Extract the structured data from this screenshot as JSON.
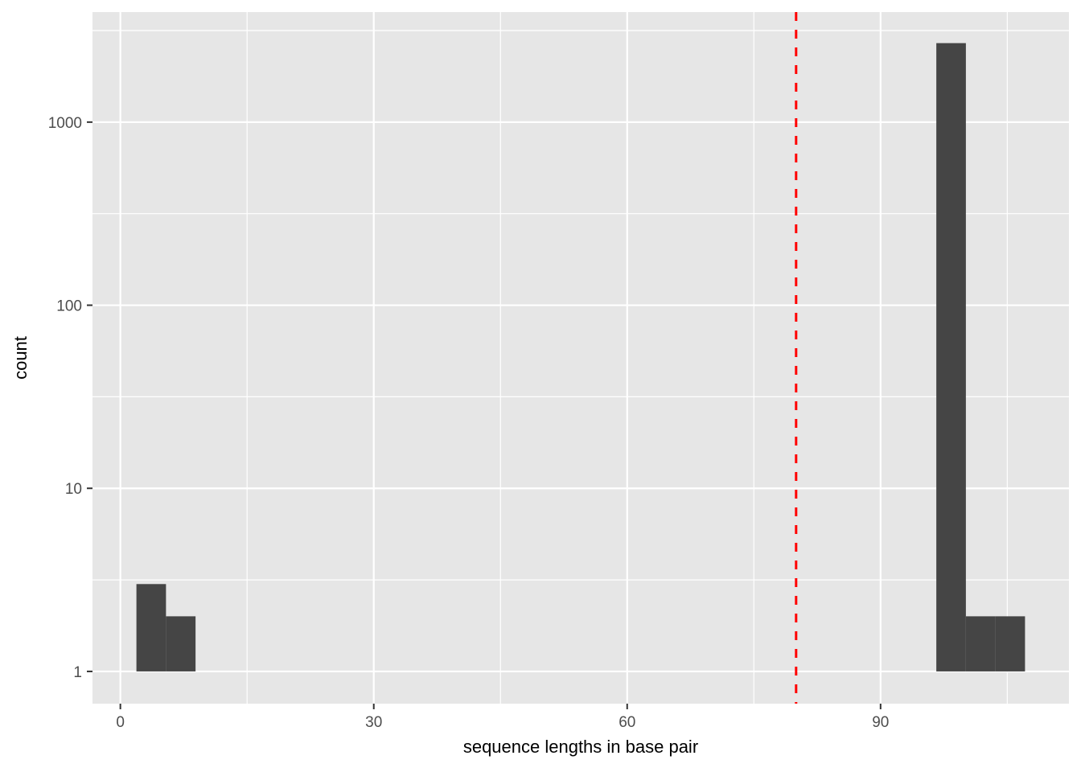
{
  "figure": {
    "background_color": "#FFFFFF",
    "panel_background_color": "#E6E6E6",
    "grid_major_color": "#FFFFFF",
    "grid_minor_color": "#FFFFFF",
    "bar_fill_color": "#454545",
    "axis_text_color": "#4D4D4D",
    "axis_title_color": "#000000",
    "tick_mark_color": "#333333"
  },
  "chart_data": {
    "type": "bar",
    "subtype": "histogram",
    "title": "",
    "xlabel": "sequence lengths in base pair",
    "ylabel": "count",
    "x_axis": {
      "ticks": [
        0,
        30,
        60,
        90
      ],
      "minor_ticks": [
        15,
        45,
        75,
        105
      ],
      "lim": [
        -3.3,
        112.3
      ]
    },
    "y_axis": {
      "scale": "log10",
      "ticks": [
        1,
        10,
        100,
        1000
      ],
      "tick_labels": [
        "1",
        "10",
        "100",
        "1000"
      ],
      "minor_ticks": [
        3.162,
        31.62,
        316.2,
        3162
      ],
      "lim_log10": [
        -0.176,
        3.601
      ]
    },
    "grid": true,
    "legend": false,
    "bar_baseline_count": 1,
    "bars": [
      {
        "x_start": 1.9,
        "x_end": 5.4,
        "count": 3
      },
      {
        "x_start": 5.4,
        "x_end": 8.9,
        "count": 2
      },
      {
        "x_start": 96.6,
        "x_end": 100.1,
        "count": 2700
      },
      {
        "x_start": 100.1,
        "x_end": 103.6,
        "count": 2
      },
      {
        "x_start": 103.6,
        "x_end": 107.1,
        "count": 2
      }
    ],
    "vline": {
      "x": 80,
      "color": "#FF0000",
      "style": "dashed"
    }
  }
}
